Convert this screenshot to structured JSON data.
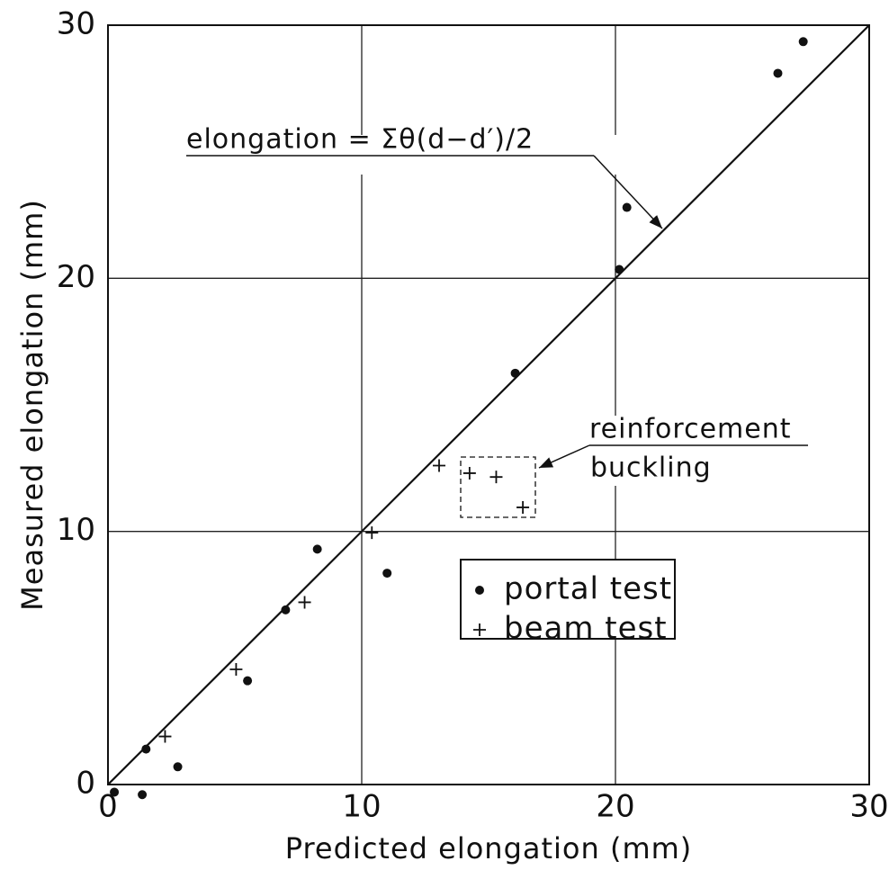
{
  "chart_data": {
    "type": "scatter",
    "x_label": "Predicted  elongation  (mm)",
    "y_label": "Measured  elongation  (mm)",
    "annotations": [
      "elongation = Σθ(d−d′)/2",
      "reinforcement",
      "buckling"
    ],
    "xlim": [
      0,
      30
    ],
    "ylim": [
      0,
      30
    ],
    "xticks": [
      0,
      10,
      20,
      30
    ],
    "yticks": [
      0,
      10,
      20,
      30
    ],
    "grid": true,
    "series": [
      {
        "name": "portal  test",
        "marker": "dot",
        "color": "#111111",
        "x": [
          0.25,
          1.35,
          1.5,
          2.75,
          5.5,
          7.0,
          8.25,
          11.0,
          16.05,
          20.15,
          20.45,
          26.4,
          27.4
        ],
        "values": [
          -0.3,
          -0.4,
          1.4,
          0.7,
          4.1,
          6.9,
          9.3,
          8.35,
          16.25,
          20.35,
          22.8,
          28.1,
          29.35
        ]
      },
      {
        "name": "beam  test",
        "marker": "plus",
        "color": "#111111",
        "x": [
          2.25,
          5.05,
          7.75,
          10.4,
          13.05,
          14.25,
          15.3,
          16.35
        ],
        "values": [
          1.9,
          4.55,
          7.2,
          9.95,
          12.6,
          12.3,
          12.15,
          10.95
        ]
      }
    ]
  }
}
